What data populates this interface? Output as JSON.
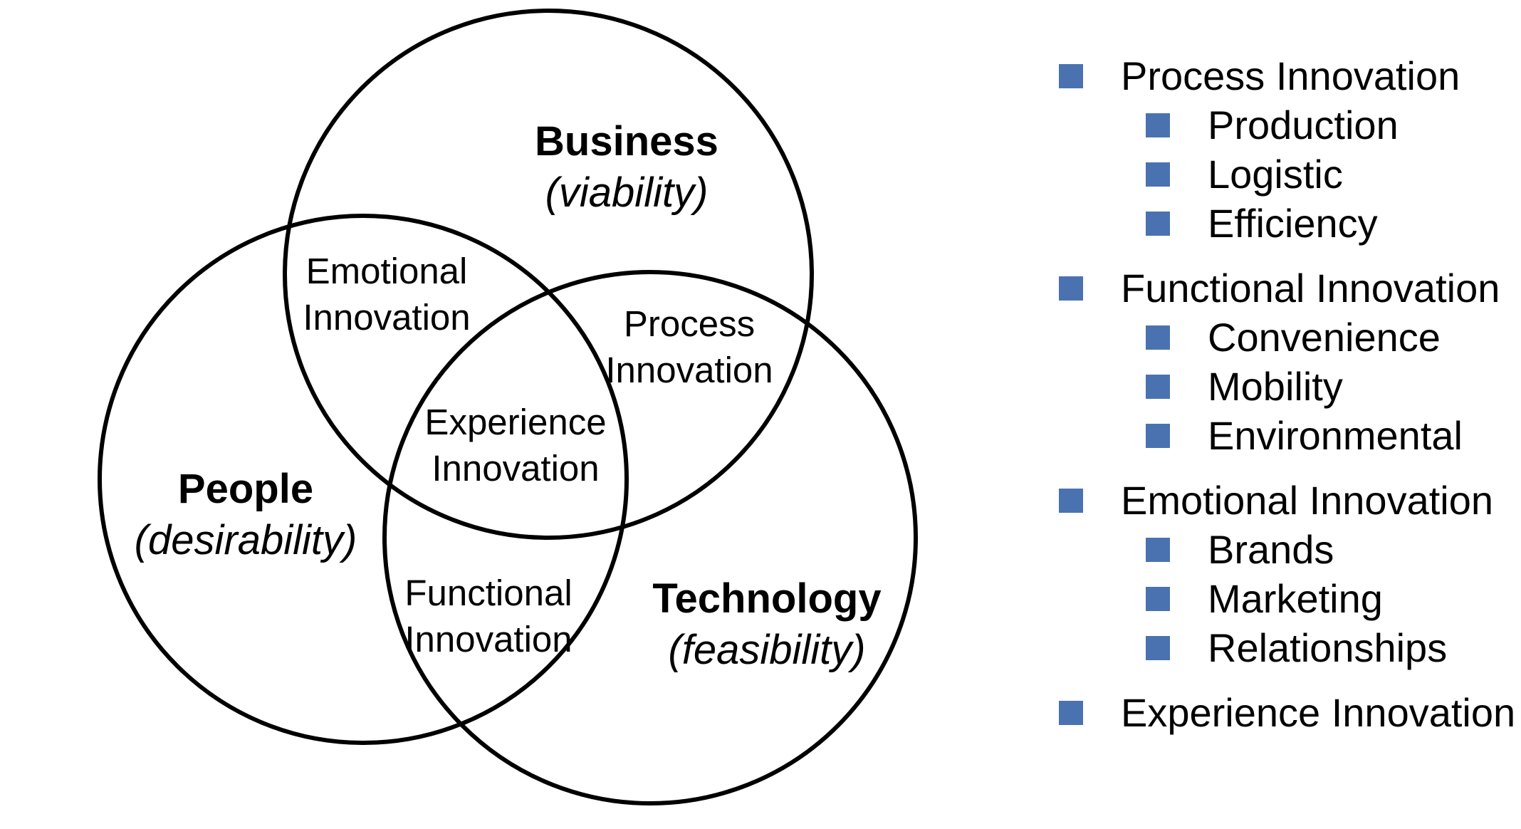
{
  "colors": {
    "bullet": "#4a72b0",
    "circle_stroke": "#000000"
  },
  "venn": {
    "sets": {
      "business": {
        "name": "Business",
        "sub": "(viability)"
      },
      "people": {
        "name": "People",
        "sub": "(desirability)"
      },
      "technology": {
        "name": "Technology",
        "sub": "(feasibility)"
      }
    },
    "regions": {
      "emotional": [
        "Emotional",
        "Innovation"
      ],
      "process": [
        "Process",
        "Innovation"
      ],
      "experience": [
        "Experience",
        "Innovation"
      ],
      "functional": [
        "Functional",
        "Innovation"
      ]
    }
  },
  "legend": [
    {
      "label": "Process Innovation",
      "children": [
        "Production",
        "Logistic",
        "Efficiency"
      ]
    },
    {
      "label": "Functional Innovation",
      "children": [
        "Convenience",
        "Mobility",
        "Environmental"
      ]
    },
    {
      "label": "Emotional Innovation",
      "children": [
        "Brands",
        "Marketing",
        "Relationships"
      ]
    },
    {
      "label": "Experience Innovation",
      "children": []
    }
  ]
}
